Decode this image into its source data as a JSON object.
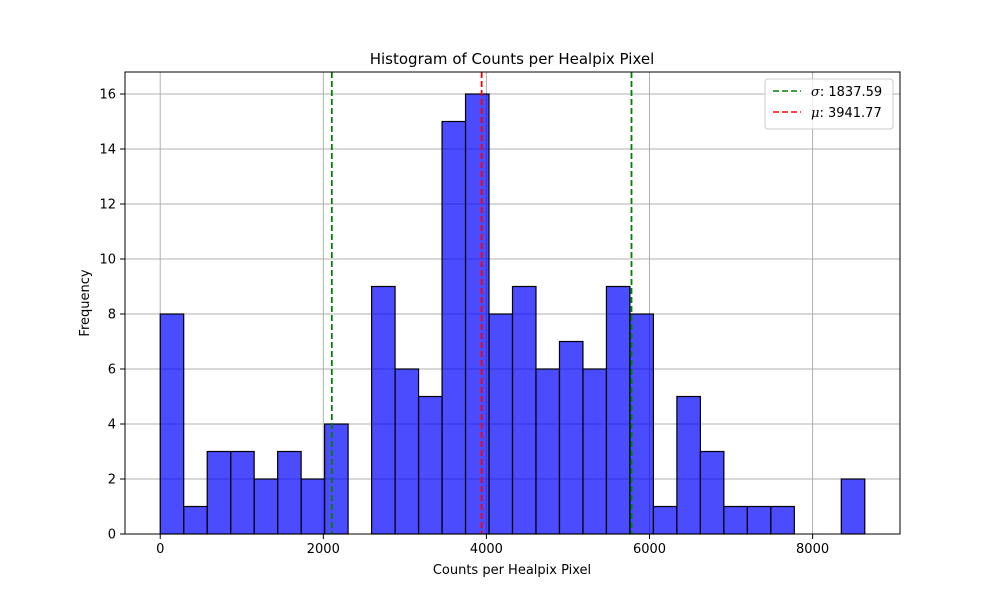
{
  "chart_data": {
    "type": "bar",
    "title": "Histogram of Counts per Healpix Pixel",
    "xlabel": "Counts per Healpix Pixel",
    "ylabel": "Frequency",
    "xlim": [
      -432,
      9072
    ],
    "ylim": [
      0,
      16.8
    ],
    "xticks": [
      0,
      2000,
      4000,
      6000,
      8000
    ],
    "yticks": [
      0,
      2,
      4,
      6,
      8,
      10,
      12,
      14,
      16
    ],
    "grid": true,
    "bin_start": 0,
    "bin_width": 288,
    "values": [
      8,
      1,
      3,
      3,
      2,
      3,
      2,
      4,
      0,
      9,
      6,
      5,
      15,
      16,
      8,
      9,
      6,
      7,
      6,
      9,
      8,
      1,
      5,
      3,
      1,
      1,
      1,
      0,
      0,
      2
    ],
    "bar_color": "#0000ff",
    "vlines": [
      {
        "name": "σ",
        "label_value": "1837.59",
        "positions": [
          2104.18,
          5779.36
        ],
        "color": "#008000"
      },
      {
        "name": "μ",
        "label_value": "3941.77",
        "positions": [
          3941.77
        ],
        "color": "#ff0000"
      }
    ],
    "legend": {
      "position": "top-right",
      "entries": [
        {
          "symbol": "σ",
          "text": ": 1837.59",
          "color": "#008000"
        },
        {
          "symbol": "μ",
          "text": ": 3941.77",
          "color": "#ff0000"
        }
      ]
    }
  }
}
